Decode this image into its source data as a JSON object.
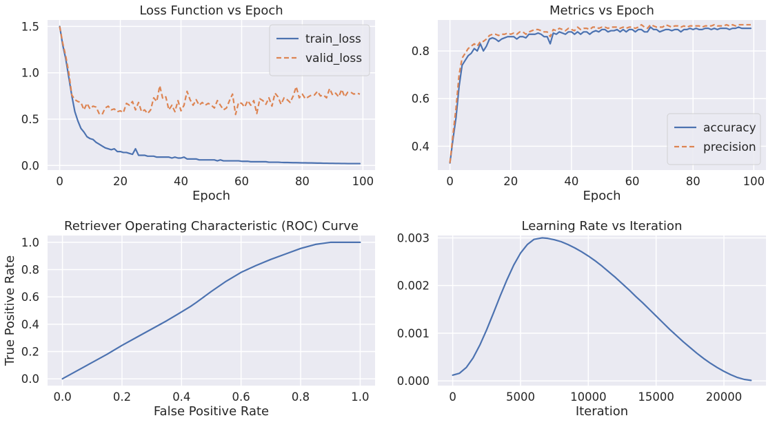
{
  "chart_data": [
    {
      "type": "line",
      "title": "Loss Function vs Epoch",
      "xlabel": "Epoch",
      "ylabel": "",
      "xlim": [
        -4,
        104
      ],
      "ylim": [
        -0.05,
        1.57
      ],
      "xticks": [
        0,
        20,
        40,
        60,
        80,
        100
      ],
      "xtick_labels": [
        "0",
        "20",
        "40",
        "60",
        "80",
        "100"
      ],
      "yticks": [
        0,
        0.5,
        1.0,
        1.5
      ],
      "ytick_labels": [
        "0.0",
        "0.5",
        "1.0",
        "1.5"
      ],
      "grid": true,
      "legend": "top-right",
      "series": [
        {
          "name": "train_loss",
          "color": "#4c72b0",
          "dash": "solid",
          "x": [
            0,
            1,
            2,
            3,
            4,
            5,
            6,
            7,
            8,
            9,
            10,
            11,
            12,
            13,
            14,
            15,
            16,
            17,
            18,
            19,
            20,
            21,
            22,
            23,
            24,
            25,
            26,
            27,
            28,
            29,
            30,
            31,
            32,
            33,
            34,
            35,
            36,
            37,
            38,
            39,
            40,
            41,
            42,
            43,
            44,
            45,
            46,
            47,
            48,
            49,
            50,
            51,
            52,
            53,
            54,
            55,
            56,
            57,
            58,
            59,
            60,
            61,
            62,
            63,
            64,
            65,
            66,
            67,
            68,
            69,
            70,
            71,
            72,
            73,
            74,
            75,
            76,
            77,
            78,
            79,
            80,
            81,
            82,
            83,
            84,
            85,
            86,
            87,
            88,
            89,
            90,
            91,
            92,
            93,
            94,
            95,
            96,
            97,
            98,
            99
          ],
          "y": [
            1.5,
            1.3,
            1.15,
            0.95,
            0.75,
            0.58,
            0.48,
            0.4,
            0.36,
            0.31,
            0.29,
            0.28,
            0.25,
            0.23,
            0.21,
            0.19,
            0.18,
            0.17,
            0.18,
            0.15,
            0.15,
            0.14,
            0.14,
            0.13,
            0.12,
            0.18,
            0.11,
            0.11,
            0.11,
            0.1,
            0.1,
            0.1,
            0.09,
            0.09,
            0.09,
            0.09,
            0.09,
            0.08,
            0.09,
            0.08,
            0.08,
            0.09,
            0.07,
            0.07,
            0.07,
            0.07,
            0.06,
            0.06,
            0.06,
            0.06,
            0.06,
            0.06,
            0.05,
            0.06,
            0.05,
            0.05,
            0.05,
            0.05,
            0.05,
            0.05,
            0.045,
            0.045,
            0.045,
            0.04,
            0.04,
            0.04,
            0.04,
            0.04,
            0.04,
            0.035,
            0.035,
            0.035,
            0.035,
            0.033,
            0.032,
            0.032,
            0.031,
            0.03,
            0.03,
            0.029,
            0.028,
            0.028,
            0.027,
            0.027,
            0.026,
            0.025,
            0.025,
            0.024,
            0.024,
            0.023,
            0.023,
            0.022,
            0.022,
            0.021,
            0.021,
            0.02,
            0.02,
            0.02,
            0.02,
            0.02
          ]
        },
        {
          "name": "valid_loss",
          "color": "#dd8452",
          "dash": "dashed",
          "x": [
            0,
            1,
            2,
            3,
            4,
            5,
            6,
            7,
            8,
            9,
            10,
            11,
            12,
            13,
            14,
            15,
            16,
            17,
            18,
            19,
            20,
            21,
            22,
            23,
            24,
            25,
            26,
            27,
            28,
            29,
            30,
            31,
            32,
            33,
            34,
            35,
            36,
            37,
            38,
            39,
            40,
            41,
            42,
            43,
            44,
            45,
            46,
            47,
            48,
            49,
            50,
            51,
            52,
            53,
            54,
            55,
            56,
            57,
            58,
            59,
            60,
            61,
            62,
            63,
            64,
            65,
            66,
            67,
            68,
            69,
            70,
            71,
            72,
            73,
            74,
            75,
            76,
            77,
            78,
            79,
            80,
            81,
            82,
            83,
            84,
            85,
            86,
            87,
            88,
            89,
            90,
            91,
            92,
            93,
            94,
            95,
            96,
            97,
            98,
            99
          ],
          "y": [
            1.5,
            1.32,
            1.18,
            1.0,
            0.76,
            0.71,
            0.69,
            0.68,
            0.6,
            0.67,
            0.61,
            0.64,
            0.63,
            0.56,
            0.55,
            0.62,
            0.64,
            0.6,
            0.61,
            0.58,
            0.59,
            0.57,
            0.67,
            0.65,
            0.69,
            0.6,
            0.68,
            0.58,
            0.6,
            0.56,
            0.6,
            0.73,
            0.69,
            0.86,
            0.72,
            0.74,
            0.6,
            0.65,
            0.58,
            0.7,
            0.59,
            0.65,
            0.8,
            0.71,
            0.65,
            0.71,
            0.65,
            0.68,
            0.65,
            0.67,
            0.65,
            0.62,
            0.7,
            0.65,
            0.6,
            0.62,
            0.7,
            0.77,
            0.55,
            0.68,
            0.67,
            0.63,
            0.7,
            0.65,
            0.7,
            0.56,
            0.72,
            0.7,
            0.66,
            0.73,
            0.64,
            0.78,
            0.74,
            0.66,
            0.73,
            0.71,
            0.68,
            0.75,
            0.85,
            0.73,
            0.77,
            0.72,
            0.74,
            0.76,
            0.76,
            0.8,
            0.75,
            0.76,
            0.73,
            0.83,
            0.76,
            0.78,
            0.74,
            0.82,
            0.74,
            0.79,
            0.79,
            0.77,
            0.78,
            0.77
          ]
        }
      ]
    },
    {
      "type": "line",
      "title": "Metrics vs Epoch",
      "xlabel": "Epoch",
      "ylabel": "",
      "xlim": [
        -4,
        104
      ],
      "ylim": [
        0.3,
        0.93
      ],
      "xticks": [
        0,
        20,
        40,
        60,
        80,
        100
      ],
      "xtick_labels": [
        "0",
        "20",
        "40",
        "60",
        "80",
        "100"
      ],
      "yticks": [
        0.4,
        0.6,
        0.8
      ],
      "ytick_labels": [
        "0.4",
        "0.6",
        "0.8"
      ],
      "grid": true,
      "legend": "bottom-right",
      "series": [
        {
          "name": "accuracy",
          "color": "#4c72b0",
          "dash": "solid",
          "x": [
            0,
            1,
            2,
            3,
            4,
            5,
            6,
            7,
            8,
            9,
            10,
            11,
            12,
            13,
            14,
            15,
            16,
            17,
            18,
            19,
            20,
            21,
            22,
            23,
            24,
            25,
            26,
            27,
            28,
            29,
            30,
            31,
            32,
            33,
            34,
            35,
            36,
            37,
            38,
            39,
            40,
            41,
            42,
            43,
            44,
            45,
            46,
            47,
            48,
            49,
            50,
            51,
            52,
            53,
            54,
            55,
            56,
            57,
            58,
            59,
            60,
            61,
            62,
            63,
            64,
            65,
            66,
            67,
            68,
            69,
            70,
            71,
            72,
            73,
            74,
            75,
            76,
            77,
            78,
            79,
            80,
            81,
            82,
            83,
            84,
            85,
            86,
            87,
            88,
            89,
            90,
            91,
            92,
            93,
            94,
            95,
            96,
            97,
            98,
            99
          ],
          "y": [
            0.33,
            0.43,
            0.52,
            0.65,
            0.74,
            0.76,
            0.78,
            0.79,
            0.81,
            0.8,
            0.83,
            0.8,
            0.82,
            0.85,
            0.855,
            0.85,
            0.84,
            0.85,
            0.855,
            0.86,
            0.86,
            0.86,
            0.85,
            0.86,
            0.86,
            0.855,
            0.87,
            0.87,
            0.87,
            0.875,
            0.87,
            0.86,
            0.86,
            0.83,
            0.875,
            0.87,
            0.88,
            0.875,
            0.87,
            0.88,
            0.88,
            0.87,
            0.88,
            0.87,
            0.88,
            0.88,
            0.87,
            0.88,
            0.885,
            0.88,
            0.89,
            0.89,
            0.88,
            0.885,
            0.885,
            0.89,
            0.88,
            0.89,
            0.88,
            0.89,
            0.89,
            0.88,
            0.89,
            0.89,
            0.88,
            0.88,
            0.9,
            0.89,
            0.89,
            0.88,
            0.885,
            0.89,
            0.89,
            0.885,
            0.89,
            0.89,
            0.88,
            0.89,
            0.89,
            0.895,
            0.89,
            0.895,
            0.89,
            0.89,
            0.895,
            0.895,
            0.89,
            0.895,
            0.89,
            0.895,
            0.895,
            0.895,
            0.89,
            0.895,
            0.895,
            0.9,
            0.895,
            0.895,
            0.895,
            0.895
          ]
        },
        {
          "name": "precision",
          "color": "#dd8452",
          "dash": "dashed",
          "x": [
            0,
            1,
            2,
            3,
            4,
            5,
            6,
            7,
            8,
            9,
            10,
            11,
            12,
            13,
            14,
            15,
            16,
            17,
            18,
            19,
            20,
            21,
            22,
            23,
            24,
            25,
            26,
            27,
            28,
            29,
            30,
            31,
            32,
            33,
            34,
            35,
            36,
            37,
            38,
            39,
            40,
            41,
            42,
            43,
            44,
            45,
            46,
            47,
            48,
            49,
            50,
            51,
            52,
            53,
            54,
            55,
            56,
            57,
            58,
            59,
            60,
            61,
            62,
            63,
            64,
            65,
            66,
            67,
            68,
            69,
            70,
            71,
            72,
            73,
            74,
            75,
            76,
            77,
            78,
            79,
            80,
            81,
            82,
            83,
            84,
            85,
            86,
            87,
            88,
            89,
            90,
            91,
            92,
            93,
            94,
            95,
            96,
            97,
            98,
            99
          ],
          "y": [
            0.33,
            0.45,
            0.56,
            0.7,
            0.77,
            0.79,
            0.81,
            0.82,
            0.83,
            0.82,
            0.84,
            0.84,
            0.85,
            0.865,
            0.87,
            0.87,
            0.865,
            0.87,
            0.87,
            0.875,
            0.87,
            0.875,
            0.87,
            0.88,
            0.88,
            0.87,
            0.88,
            0.885,
            0.89,
            0.89,
            0.885,
            0.88,
            0.88,
            0.86,
            0.89,
            0.885,
            0.895,
            0.89,
            0.885,
            0.895,
            0.89,
            0.885,
            0.9,
            0.89,
            0.895,
            0.895,
            0.89,
            0.9,
            0.9,
            0.895,
            0.9,
            0.9,
            0.895,
            0.9,
            0.9,
            0.9,
            0.895,
            0.9,
            0.895,
            0.9,
            0.9,
            0.895,
            0.9,
            0.91,
            0.9,
            0.895,
            0.91,
            0.905,
            0.9,
            0.9,
            0.9,
            0.91,
            0.905,
            0.9,
            0.905,
            0.905,
            0.9,
            0.905,
            0.9,
            0.905,
            0.905,
            0.905,
            0.905,
            0.9,
            0.905,
            0.905,
            0.905,
            0.91,
            0.905,
            0.905,
            0.905,
            0.91,
            0.905,
            0.91,
            0.905,
            0.91,
            0.91,
            0.91,
            0.91,
            0.91
          ]
        }
      ]
    },
    {
      "type": "line",
      "title": "Retriever Operating Characteristic (ROC) Curve",
      "xlabel": "False Positive Rate",
      "ylabel": "True Positive Rate",
      "xlim": [
        -0.05,
        1.05
      ],
      "ylim": [
        -0.05,
        1.05
      ],
      "xticks": [
        0,
        0.2,
        0.4,
        0.6,
        0.8,
        1.0
      ],
      "xtick_labels": [
        "0.0",
        "0.2",
        "0.4",
        "0.6",
        "0.8",
        "1.0"
      ],
      "yticks": [
        0,
        0.2,
        0.4,
        0.6,
        0.8,
        1.0
      ],
      "ytick_labels": [
        "0.0",
        "0.2",
        "0.4",
        "0.6",
        "0.8",
        "1.0"
      ],
      "grid": true,
      "series": [
        {
          "color": "#4c72b0",
          "dash": "solid",
          "x": [
            0,
            0.05,
            0.1,
            0.15,
            0.2,
            0.25,
            0.3,
            0.35,
            0.4,
            0.43,
            0.45,
            0.5,
            0.55,
            0.6,
            0.65,
            0.7,
            0.75,
            0.8,
            0.85,
            0.9,
            0.95,
            1.0
          ],
          "y": [
            0,
            0.06,
            0.12,
            0.18,
            0.245,
            0.305,
            0.365,
            0.425,
            0.49,
            0.53,
            0.56,
            0.64,
            0.715,
            0.78,
            0.83,
            0.875,
            0.915,
            0.955,
            0.985,
            1.0,
            1.0,
            1.0
          ]
        }
      ]
    },
    {
      "type": "line",
      "title": "Learning Rate vs Iteration",
      "xlabel": "Iteration",
      "ylabel": "",
      "xlim": [
        -1100,
        23100
      ],
      "ylim": [
        -0.0001,
        0.00305
      ],
      "xticks": [
        0,
        5000,
        10000,
        15000,
        20000
      ],
      "xtick_labels": [
        "0",
        "5000",
        "10000",
        "15000",
        "20000"
      ],
      "yticks": [
        0,
        0.001,
        0.002,
        0.003
      ],
      "ytick_labels": [
        "0.000",
        "0.001",
        "0.002",
        "0.003"
      ],
      "grid": true,
      "series": [
        {
          "color": "#4c72b0",
          "dash": "solid",
          "x": [
            0,
            500,
            1000,
            1500,
            2000,
            2500,
            3000,
            3500,
            4000,
            4500,
            5000,
            5500,
            6000,
            6600,
            7000,
            7500,
            8000,
            8500,
            9000,
            9500,
            10000,
            10500,
            11000,
            11500,
            12000,
            12500,
            13000,
            13500,
            14000,
            14500,
            15000,
            15500,
            16000,
            16500,
            17000,
            17500,
            18000,
            18500,
            19000,
            19500,
            20000,
            20500,
            21000,
            21500,
            22000
          ],
          "y": [
            0.00012,
            0.00016,
            0.00028,
            0.00048,
            0.00075,
            0.00107,
            0.00142,
            0.00178,
            0.00212,
            0.00243,
            0.00268,
            0.00286,
            0.00297,
            0.003,
            0.00299,
            0.00296,
            0.00292,
            0.00286,
            0.00279,
            0.00271,
            0.00262,
            0.00252,
            0.00241,
            0.00229,
            0.00217,
            0.00204,
            0.00191,
            0.00177,
            0.00164,
            0.0015,
            0.00136,
            0.00122,
            0.00108,
            0.00095,
            0.00082,
            0.0007,
            0.00058,
            0.00047,
            0.00037,
            0.00028,
            0.0002,
            0.00013,
            7e-05,
            3e-05,
            1e-05
          ]
        }
      ]
    }
  ]
}
